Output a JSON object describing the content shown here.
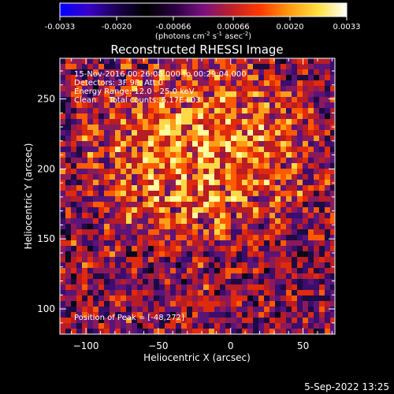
{
  "colorbar": {
    "ticks": [
      "-0.0033",
      "-0.0020",
      "-0.00066",
      "0.00066",
      "0.0020",
      "0.0033"
    ],
    "units_prefix": "(photons cm",
    "units_exp1": "-2",
    "units_mid": " s",
    "units_exp2": "-1",
    "units_mid2": " asec",
    "units_exp3": "-2",
    "units_suffix": ")",
    "colors": [
      "#0000ff",
      "#3a00c8",
      "#1a0050",
      "#000000",
      "#2a0040",
      "#7a1080",
      "#c02028",
      "#ff3a00",
      "#ff9a10",
      "#ffe040",
      "#ffffff"
    ]
  },
  "chart_data": {
    "type": "heatmap",
    "title": "Reconstructed RHESSI Image",
    "xlabel": "Heliocentric X (arcsec)",
    "ylabel": "Heliocentric Y (arcsec)",
    "xlim": [
      -118,
      72
    ],
    "ylim": [
      82,
      279
    ],
    "xticks": [
      -100,
      -50,
      0,
      50
    ],
    "xtick_labels": [
      "−100",
      "−50",
      "0",
      "50"
    ],
    "yticks": [
      100,
      150,
      200,
      250
    ],
    "ytick_labels": [
      "100",
      "150",
      "200",
      "250"
    ],
    "color_range": [
      -0.0033,
      0.0033
    ],
    "annotations": [
      "15-Nov-2016 00:26:08.000 to 00:29:04.000",
      "Detectors: 3F 9F, Att 0",
      "Energy Range: 12.0 - 25.0 keV",
      "Clean     Total counts: 6.17E+03"
    ],
    "peak_label": "Position of Peak = [-48,272]",
    "peak_position": [
      -48,
      272
    ]
  },
  "timestamp": "5-Sep-2022 13:25"
}
